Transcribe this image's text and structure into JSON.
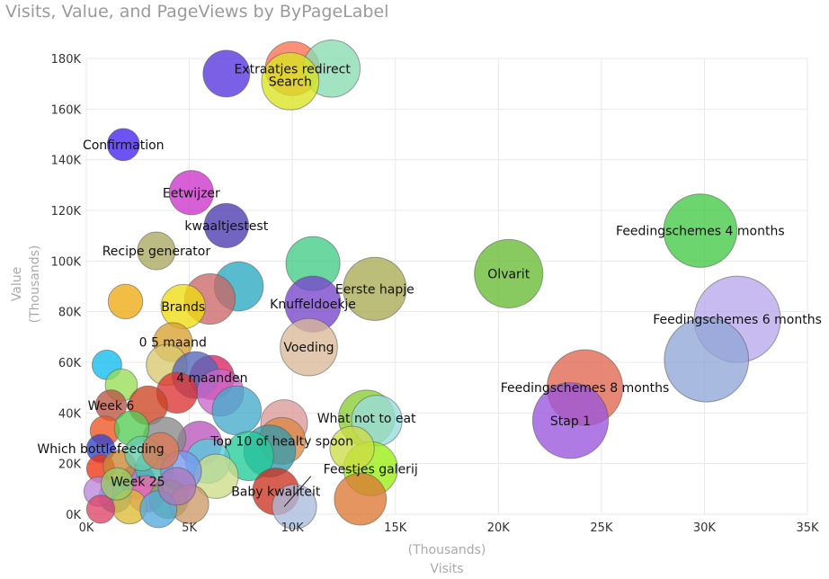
{
  "chart_data": {
    "type": "scatter",
    "title": "Visits, Value, and PageViews by ByPageLabel",
    "xlabel": "Visits",
    "xunit": "(Thousands)",
    "ylabel": "Value",
    "yunit": "(Thousands)",
    "xlim": [
      0,
      35000
    ],
    "ylim": [
      0,
      180000
    ],
    "xticks": [
      {
        "v": 0,
        "label": "0K"
      },
      {
        "v": 5000,
        "label": "5K"
      },
      {
        "v": 10000,
        "label": "10K"
      },
      {
        "v": 15000,
        "label": "15K"
      },
      {
        "v": 20000,
        "label": "20K"
      },
      {
        "v": 25000,
        "label": "25K"
      },
      {
        "v": 30000,
        "label": "30K"
      },
      {
        "v": 35000,
        "label": "35K"
      }
    ],
    "yticks": [
      {
        "v": 0,
        "label": "0K"
      },
      {
        "v": 20000,
        "label": "20K"
      },
      {
        "v": 40000,
        "label": "40K"
      },
      {
        "v": 60000,
        "label": "60K"
      },
      {
        "v": 80000,
        "label": "80K"
      },
      {
        "v": 100000,
        "label": "100K"
      },
      {
        "v": 120000,
        "label": "120K"
      },
      {
        "v": 140000,
        "label": "140K"
      },
      {
        "v": 160000,
        "label": "160K"
      },
      {
        "v": 180000,
        "label": "180K"
      }
    ],
    "grid": true,
    "legend": "none",
    "points": [
      {
        "label": "Feedingschemes 4 months",
        "x": 29800,
        "y": 112000,
        "size": 70000,
        "color": "#44c944"
      },
      {
        "label": "Olvarit",
        "x": 20500,
        "y": 95000,
        "size": 60000,
        "color": "#66bb33"
      },
      {
        "label": "Feedingschemes 6 months",
        "x": 31600,
        "y": 77000,
        "size": 100000,
        "color": "#b9a8ec"
      },
      {
        "label": "",
        "x": 30100,
        "y": 61000,
        "size": 95000,
        "color": "#8fa6d6"
      },
      {
        "label": "Feedingschemes 8 months",
        "x": 24200,
        "y": 50000,
        "size": 75000,
        "color": "#e06650"
      },
      {
        "label": "Stap 1",
        "x": 23500,
        "y": 37000,
        "size": 75000,
        "color": "#9a55dd"
      },
      {
        "label": "Extraatjes redirect",
        "x": 10000,
        "y": 176000,
        "size": 35000,
        "color": "#ff7050"
      },
      {
        "label": "",
        "x": 11900,
        "y": 176000,
        "size": 40000,
        "color": "#88ddb0"
      },
      {
        "label": "Search",
        "x": 9900,
        "y": 171000,
        "size": 40000,
        "color": "#d8e620"
      },
      {
        "label": "",
        "x": 6800,
        "y": 174000,
        "size": 25000,
        "color": "#5533dd"
      },
      {
        "label": "Confirmation",
        "x": 1800,
        "y": 146000,
        "size": 10000,
        "color": "#4422ee"
      },
      {
        "label": "Eetwijzer",
        "x": 5100,
        "y": 127000,
        "size": 22000,
        "color": "#cc33cc"
      },
      {
        "label": "kwaaltjestest",
        "x": 6800,
        "y": 114000,
        "size": 22000,
        "color": "#4a3ab0"
      },
      {
        "label": "Recipe generator",
        "x": 3400,
        "y": 104000,
        "size": 15000,
        "color": "#a8a860"
      },
      {
        "label": "",
        "x": 11000,
        "y": 99000,
        "size": 35000,
        "color": "#44cc88"
      },
      {
        "label": "Eerste hapje",
        "x": 14000,
        "y": 89000,
        "size": 50000,
        "color": "#aaaa55"
      },
      {
        "label": "",
        "x": 7400,
        "y": 90000,
        "size": 28000,
        "color": "#2aa8c0"
      },
      {
        "label": "Knuffeldoekje",
        "x": 11000,
        "y": 83000,
        "size": 38000,
        "color": "#7744cc"
      },
      {
        "label": "",
        "x": 6000,
        "y": 85000,
        "size": 30000,
        "color": "#cc6666"
      },
      {
        "label": "Brands",
        "x": 4700,
        "y": 82000,
        "size": 22000,
        "color": "#eedd11"
      },
      {
        "label": "",
        "x": 1900,
        "y": 84000,
        "size": 12000,
        "color": "#eeaa11"
      },
      {
        "label": "Voeding",
        "x": 10800,
        "y": 66000,
        "size": 40000,
        "color": "#d8b898"
      },
      {
        "label": "0 5 maand",
        "x": 4200,
        "y": 68000,
        "size": 16000,
        "color": "#d8a030"
      },
      {
        "label": "",
        "x": 3900,
        "y": 59000,
        "size": 18000,
        "color": "#d8c870"
      },
      {
        "label": "",
        "x": 1000,
        "y": 59000,
        "size": 8000,
        "color": "#11bbee"
      },
      {
        "label": "4 maanden",
        "x": 6100,
        "y": 54000,
        "size": 22000,
        "color": "#dd2266"
      },
      {
        "label": "",
        "x": 5300,
        "y": 55000,
        "size": 25000,
        "color": "#5566bb"
      },
      {
        "label": "What not to eat",
        "x": 13600,
        "y": 38000,
        "size": 38000,
        "color": "#88cc33"
      },
      {
        "label": "",
        "x": 14100,
        "y": 37000,
        "size": 30000,
        "color": "#99dddd"
      },
      {
        "label": "",
        "x": 6500,
        "y": 48000,
        "size": 25000,
        "color": "#cc66cc"
      },
      {
        "label": "",
        "x": 7300,
        "y": 41000,
        "size": 28000,
        "color": "#44aacc"
      },
      {
        "label": "",
        "x": 4400,
        "y": 48000,
        "size": 18000,
        "color": "#dd3333"
      },
      {
        "label": "",
        "x": 1700,
        "y": 51000,
        "size": 10000,
        "color": "#99dd55"
      },
      {
        "label": "",
        "x": 3000,
        "y": 43000,
        "size": 16000,
        "color": "#cc4422"
      },
      {
        "label": "Week 6",
        "x": 1200,
        "y": 43000,
        "size": 9000,
        "color": "#bb5544"
      },
      {
        "label": "",
        "x": 9600,
        "y": 36000,
        "size": 25000,
        "color": "#dd9999"
      },
      {
        "label": "Top 10 of healty spoon",
        "x": 9500,
        "y": 29000,
        "size": 25000,
        "color": "#dd8844"
      },
      {
        "label": "",
        "x": 8900,
        "y": 25000,
        "size": 32000,
        "color": "#3399aa"
      },
      {
        "label": "",
        "x": 7900,
        "y": 23000,
        "size": 28000,
        "color": "#22cc99"
      },
      {
        "label": "",
        "x": 5500,
        "y": 28000,
        "size": 22000,
        "color": "#bb55bb"
      },
      {
        "label": "",
        "x": 3800,
        "y": 30000,
        "size": 20000,
        "color": "#888888"
      },
      {
        "label": "",
        "x": 900,
        "y": 33000,
        "size": 8000,
        "color": "#ee5522"
      },
      {
        "label": "",
        "x": 2200,
        "y": 34000,
        "size": 12000,
        "color": "#55cc55"
      },
      {
        "label": "Which bottlefeeding",
        "x": 700,
        "y": 26000,
        "size": 7000,
        "color": "#3344cc"
      },
      {
        "label": "",
        "x": 5900,
        "y": 21000,
        "size": 22000,
        "color": "#55ccdd"
      },
      {
        "label": "",
        "x": 6300,
        "y": 15000,
        "size": 22000,
        "color": "#ccdd88"
      },
      {
        "label": "Feestjes galerij",
        "x": 13800,
        "y": 18000,
        "size": 35000,
        "color": "#99ee11"
      },
      {
        "label": "",
        "x": 12900,
        "y": 26000,
        "size": 22000,
        "color": "#ccdd44"
      },
      {
        "label": "Baby kwaliteit",
        "x": 9200,
        "y": 9000,
        "size": 25000,
        "color": "#cc3322"
      },
      {
        "label": "",
        "x": 13300,
        "y": 6000,
        "size": 32000,
        "color": "#dd7733"
      },
      {
        "label": "",
        "x": 10100,
        "y": 3000,
        "size": 22000,
        "color": "#aabbdd"
      },
      {
        "label": "Week 25",
        "x": 2500,
        "y": 13000,
        "size": 12000,
        "color": "#8866cc"
      },
      {
        "label": "",
        "x": 700,
        "y": 18000,
        "size": 7000,
        "color": "#ee3311"
      },
      {
        "label": "",
        "x": 1600,
        "y": 19000,
        "size": 10000,
        "color": "#cc8833"
      },
      {
        "label": "",
        "x": 3300,
        "y": 18000,
        "size": 15000,
        "color": "#44bbaa"
      },
      {
        "label": "",
        "x": 4600,
        "y": 17000,
        "size": 18000,
        "color": "#7799ee"
      },
      {
        "label": "",
        "x": 2900,
        "y": 8000,
        "size": 14000,
        "color": "#ee66aa"
      },
      {
        "label": "",
        "x": 4000,
        "y": 6000,
        "size": 16000,
        "color": "#66aa55"
      },
      {
        "label": "",
        "x": 5000,
        "y": 4000,
        "size": 16000,
        "color": "#cc9966"
      },
      {
        "label": "",
        "x": 1400,
        "y": 7000,
        "size": 10000,
        "color": "#5588cc"
      },
      {
        "label": "",
        "x": 600,
        "y": 9000,
        "size": 8000,
        "color": "#bb88dd"
      },
      {
        "label": "",
        "x": 2100,
        "y": 3000,
        "size": 12000,
        "color": "#ddbb33"
      },
      {
        "label": "",
        "x": 3500,
        "y": 2000,
        "size": 14000,
        "color": "#55aadd"
      },
      {
        "label": "",
        "x": 700,
        "y": 2000,
        "size": 7000,
        "color": "#dd4466"
      },
      {
        "label": "",
        "x": 1500,
        "y": 12000,
        "size": 10000,
        "color": "#99cc66"
      },
      {
        "label": "",
        "x": 4400,
        "y": 11000,
        "size": 15000,
        "color": "#aa77bb"
      },
      {
        "label": "",
        "x": 2700,
        "y": 24000,
        "size": 12000,
        "color": "#66ccaa"
      },
      {
        "label": "",
        "x": 3600,
        "y": 25000,
        "size": 14000,
        "color": "#dd7755"
      }
    ],
    "annotation_leader": {
      "from": [
        10900,
        15000
      ],
      "to": [
        9600,
        3000
      ]
    }
  }
}
